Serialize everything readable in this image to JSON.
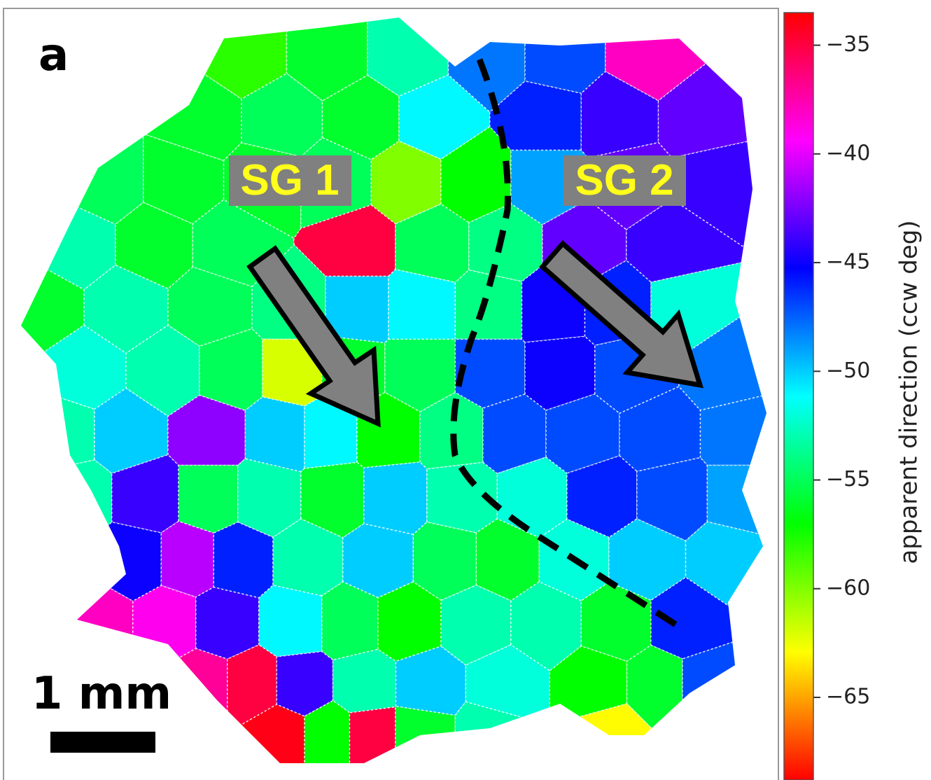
{
  "panel_label": "a",
  "annotations": {
    "sg1": "SG 1",
    "sg2": "SG 2",
    "scale_bar": "1 mm"
  },
  "chart_data": {
    "type": "grain-map",
    "colormap": "hsv",
    "colorbar": {
      "label": "apparent direction (ccw deg)",
      "clim": [
        -68.8,
        -33.5
      ],
      "ticks": [
        {
          "value": -35,
          "label": "−35"
        },
        {
          "value": -40,
          "label": "−40"
        },
        {
          "value": -45,
          "label": "−45"
        },
        {
          "value": -50,
          "label": "−50"
        },
        {
          "value": -55,
          "label": "−55"
        },
        {
          "value": -60,
          "label": "−60"
        },
        {
          "value": -65,
          "label": "−65"
        }
      ]
    },
    "grains": {
      "x": [
        2.33,
        3.13,
        3.87,
        4.67,
        5.33,
        6.2,
        1.93,
        2.67,
        3.47,
        4.13,
        5.2,
        5.87,
        6.67,
        1.0,
        1.73,
        2.53,
        3.2,
        3.87,
        4.53,
        5.2,
        6.0,
        6.8,
        0.73,
        1.47,
        2.2,
        3.4,
        4.13,
        4.8,
        5.53,
        6.4,
        0.4,
        1.2,
        2.0,
        2.8,
        3.4,
        4.0,
        4.67,
        5.27,
        5.87,
        6.53,
        0.8,
        1.6,
        2.2,
        2.8,
        3.33,
        4.0,
        4.67,
        5.33,
        6.0,
        6.93,
        0.6,
        1.2,
        2.0,
        2.67,
        3.13,
        3.67,
        4.33,
        4.87,
        5.53,
        6.27,
        7.07,
        0.73,
        1.4,
        2.0,
        2.53,
        3.2,
        3.73,
        4.4,
        5.07,
        5.73,
        6.4,
        7.07,
        1.27,
        1.8,
        2.27,
        2.93,
        3.6,
        4.27,
        4.8,
        5.47,
        6.13,
        6.93,
        0.93,
        1.6,
        2.13,
        2.8,
        3.33,
        3.87,
        4.53,
        5.2,
        5.87,
        6.53,
        1.93,
        2.4,
        2.87,
        3.47,
        4.07,
        4.8,
        5.67,
        6.27,
        6.73,
        2.67,
        3.13,
        3.53,
        4.0,
        4.67,
        5.8
      ],
      "y": [
        0.53,
        0.53,
        0.53,
        0.53,
        0.53,
        0.53,
        1.13,
        1.13,
        1.13,
        1.13,
        1.13,
        1.13,
        1.13,
        1.73,
        1.73,
        1.73,
        1.73,
        1.73,
        1.73,
        1.73,
        1.73,
        1.73,
        2.33,
        2.33,
        2.33,
        2.33,
        2.33,
        2.33,
        2.33,
        2.33,
        2.93,
        2.93,
        2.93,
        2.93,
        2.93,
        2.93,
        2.93,
        2.93,
        2.93,
        2.93,
        3.53,
        3.53,
        3.53,
        3.53,
        3.53,
        3.53,
        3.53,
        3.53,
        3.53,
        3.53,
        4.13,
        4.13,
        4.13,
        4.13,
        4.13,
        4.13,
        4.13,
        4.13,
        4.13,
        4.13,
        4.13,
        4.73,
        4.73,
        4.73,
        4.73,
        4.73,
        4.73,
        4.73,
        4.73,
        4.73,
        4.73,
        4.73,
        5.33,
        5.33,
        5.33,
        5.33,
        5.33,
        5.33,
        5.33,
        5.33,
        5.33,
        5.33,
        5.93,
        5.93,
        5.93,
        5.93,
        5.93,
        5.93,
        5.93,
        5.93,
        5.93,
        5.93,
        6.53,
        6.53,
        6.53,
        6.53,
        6.53,
        6.53,
        6.53,
        6.53,
        6.53,
        7.0,
        7.0,
        7.0,
        7.0,
        7.0,
        7.0
      ],
      "values": [
        -58,
        -56,
        -53,
        -48,
        -47,
        -38,
        -56,
        -55,
        -56,
        -51,
        -46,
        -44,
        -43,
        -55,
        -56,
        -56,
        -55,
        -60,
        -57,
        -49,
        -43,
        -44,
        -53,
        -56,
        -55,
        -35,
        -55,
        -54,
        -43,
        -44,
        -56,
        -53,
        -55,
        -54,
        -50,
        -51,
        -54,
        -45,
        -46,
        -52,
        -52,
        -53,
        -55,
        -62,
        -56,
        -55,
        -47,
        -45,
        -47,
        -48,
        -53,
        -50,
        -42,
        -50,
        -51,
        -57,
        -54,
        -47,
        -47,
        -47,
        -48,
        -53,
        -44,
        -55,
        -53,
        -56,
        -50,
        -53,
        -52,
        -46,
        -47,
        -49,
        -45,
        -41,
        -46,
        -53,
        -50,
        -55,
        -56,
        -52,
        -50,
        -50,
        -38,
        -39,
        -44,
        -51,
        -55,
        -57,
        -53,
        -53,
        -56,
        -46,
        -37,
        -35,
        -44,
        -53,
        -50,
        -52,
        -57,
        -56,
        -47,
        -34,
        -57,
        -35,
        -56,
        -53,
        -63
      ]
    }
  }
}
